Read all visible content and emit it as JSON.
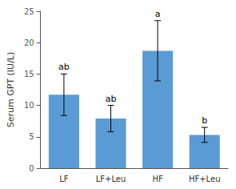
{
  "chart_data": {
    "type": "bar",
    "categories": [
      "LF",
      "LF+Leu",
      "HF",
      "HF+Leu"
    ],
    "values": [
      11.7,
      7.9,
      18.7,
      5.3
    ],
    "errors": [
      3.3,
      2.1,
      4.8,
      1.2
    ],
    "annotations": [
      "ab",
      "ab",
      "a",
      "b"
    ],
    "color": "#5b9bd5",
    "ylabel": "Serum GPT (IU/L)",
    "ylim": [
      0,
      25
    ],
    "yticks": [
      0,
      5,
      10,
      15,
      20,
      25
    ],
    "grid": false
  }
}
